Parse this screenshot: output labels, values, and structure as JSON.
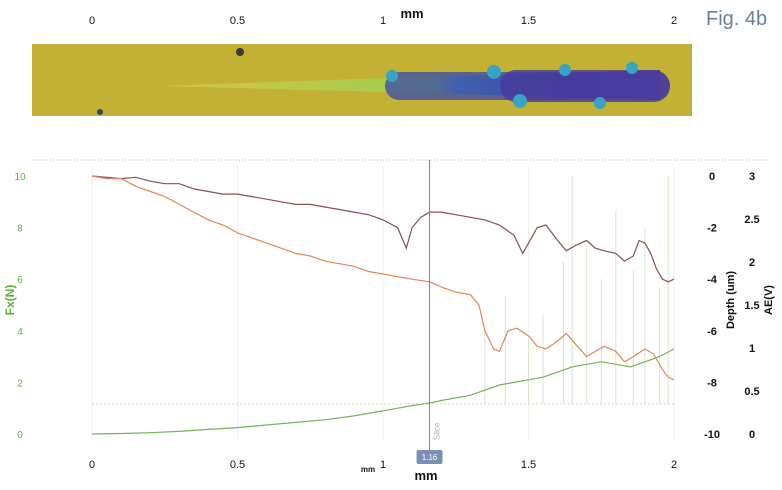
{
  "figure_label": "Fig. 4b",
  "chart_data": {
    "type": "line",
    "x_axis": {
      "label": "mm",
      "top_label": "mm",
      "small_label": "mm",
      "range": [
        0,
        2
      ],
      "ticks": [
        "0",
        "0.5",
        "1",
        "1.5",
        "2"
      ],
      "tick_values": [
        0,
        0.5,
        1,
        1.5,
        2
      ]
    },
    "y_axes": {
      "left": {
        "label": "Fx(N)",
        "color": "#58b33a",
        "range": [
          0,
          10
        ],
        "ticks": [
          "0",
          "2",
          "4",
          "6",
          "8",
          "10"
        ]
      },
      "depth": {
        "label": "Depth (um)",
        "color": "#111111",
        "range": [
          -10,
          0
        ],
        "ticks": [
          "0",
          "-2",
          "-4",
          "-6",
          "-8",
          "-10"
        ]
      },
      "ae": {
        "label": "AE(V)",
        "color": "#111111",
        "range": [
          0,
          3
        ],
        "ticks": [
          "3",
          "2.5",
          "2",
          "1.5",
          "1",
          "0.5",
          "0"
        ]
      }
    },
    "cursor": {
      "x": 1.16,
      "label": "1.16",
      "tag": "Slice"
    },
    "grid": false,
    "series": [
      {
        "axis": "depth",
        "color": "#8a4f4f",
        "x": [
          0,
          0.05,
          0.1,
          0.15,
          0.2,
          0.25,
          0.3,
          0.35,
          0.4,
          0.45,
          0.5,
          0.55,
          0.6,
          0.65,
          0.7,
          0.75,
          0.8,
          0.85,
          0.9,
          0.95,
          1.0,
          1.05,
          1.08,
          1.1,
          1.13,
          1.16,
          1.2,
          1.25,
          1.3,
          1.35,
          1.4,
          1.45,
          1.48,
          1.5,
          1.53,
          1.56,
          1.6,
          1.63,
          1.66,
          1.7,
          1.73,
          1.76,
          1.8,
          1.83,
          1.86,
          1.88,
          1.9,
          1.92,
          1.94,
          1.96,
          1.98,
          2.0
        ],
        "y": [
          0,
          -0.05,
          -0.1,
          -0.05,
          -0.2,
          -0.3,
          -0.3,
          -0.5,
          -0.6,
          -0.7,
          -0.7,
          -0.8,
          -0.9,
          -1.0,
          -1.1,
          -1.1,
          -1.2,
          -1.3,
          -1.4,
          -1.5,
          -1.7,
          -2.0,
          -2.8,
          -2.0,
          -1.6,
          -1.4,
          -1.4,
          -1.5,
          -1.6,
          -1.7,
          -1.9,
          -2.3,
          -3.0,
          -2.6,
          -2.0,
          -1.9,
          -2.5,
          -2.9,
          -2.7,
          -2.5,
          -2.8,
          -2.9,
          -3.0,
          -3.3,
          -3.1,
          -2.5,
          -2.6,
          -3.0,
          -3.6,
          -4.0,
          -4.1,
          -4.0
        ]
      },
      {
        "axis": "depth",
        "color": "#e1865a",
        "x": [
          0,
          0.05,
          0.1,
          0.15,
          0.2,
          0.25,
          0.3,
          0.35,
          0.4,
          0.45,
          0.5,
          0.55,
          0.6,
          0.65,
          0.7,
          0.75,
          0.8,
          0.85,
          0.9,
          0.95,
          1.0,
          1.05,
          1.1,
          1.16,
          1.2,
          1.25,
          1.3,
          1.33,
          1.35,
          1.38,
          1.4,
          1.43,
          1.46,
          1.5,
          1.53,
          1.56,
          1.6,
          1.63,
          1.66,
          1.7,
          1.73,
          1.76,
          1.8,
          1.83,
          1.86,
          1.9,
          1.93,
          1.96,
          1.98,
          2.0
        ],
        "y": [
          0,
          -0.1,
          -0.1,
          -0.4,
          -0.6,
          -0.8,
          -1.1,
          -1.4,
          -1.7,
          -1.9,
          -2.2,
          -2.4,
          -2.6,
          -2.8,
          -3.0,
          -3.1,
          -3.3,
          -3.4,
          -3.5,
          -3.7,
          -3.8,
          -3.9,
          -4.0,
          -4.1,
          -4.3,
          -4.5,
          -4.6,
          -5.0,
          -6.0,
          -6.7,
          -6.8,
          -6.0,
          -5.9,
          -6.2,
          -6.6,
          -6.7,
          -6.4,
          -6.1,
          -6.5,
          -7.0,
          -6.8,
          -6.6,
          -6.8,
          -7.2,
          -7.0,
          -6.7,
          -6.9,
          -7.5,
          -7.8,
          -7.9
        ]
      },
      {
        "axis": "left",
        "color": "#72b35a",
        "x": [
          0,
          0.1,
          0.2,
          0.3,
          0.4,
          0.5,
          0.6,
          0.7,
          0.8,
          0.9,
          1.0,
          1.05,
          1.1,
          1.16,
          1.2,
          1.25,
          1.3,
          1.35,
          1.4,
          1.45,
          1.5,
          1.55,
          1.6,
          1.65,
          1.7,
          1.75,
          1.8,
          1.85,
          1.9,
          1.95,
          2.0
        ],
        "y": [
          0,
          0.02,
          0.05,
          0.1,
          0.18,
          0.25,
          0.35,
          0.45,
          0.55,
          0.7,
          0.9,
          1.0,
          1.1,
          1.2,
          1.3,
          1.4,
          1.5,
          1.7,
          1.9,
          2.0,
          2.1,
          2.2,
          2.4,
          2.6,
          2.7,
          2.8,
          2.7,
          2.6,
          2.8,
          3.0,
          3.3
        ]
      },
      {
        "axis": "ae",
        "color": "#c8d6b8",
        "x": [
          0,
          0.5,
          1.0,
          1.16,
          1.3,
          1.5,
          1.6,
          1.7,
          1.8,
          1.9,
          2.0
        ],
        "y": [
          0.35,
          0.35,
          0.35,
          0.35,
          0.35,
          0.35,
          0.35,
          0.35,
          0.35,
          0.35,
          0.35
        ]
      }
    ],
    "ae_spikes": [
      {
        "x": 1.35,
        "y": 1.2
      },
      {
        "x": 1.42,
        "y": 1.6
      },
      {
        "x": 1.5,
        "y": 1.1
      },
      {
        "x": 1.55,
        "y": 1.4
      },
      {
        "x": 1.62,
        "y": 2.0
      },
      {
        "x": 1.65,
        "y": 3.0
      },
      {
        "x": 1.7,
        "y": 2.2
      },
      {
        "x": 1.75,
        "y": 1.8
      },
      {
        "x": 1.8,
        "y": 2.6
      },
      {
        "x": 1.86,
        "y": 1.9
      },
      {
        "x": 1.9,
        "y": 2.4
      },
      {
        "x": 1.95,
        "y": 1.7
      },
      {
        "x": 1.98,
        "y": 3.0
      }
    ]
  }
}
